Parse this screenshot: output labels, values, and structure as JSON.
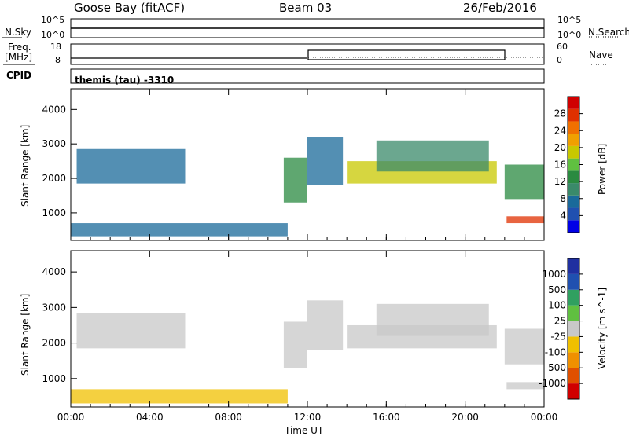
{
  "header": {
    "station": "Goose Bay (fitACF)",
    "beam": "Beam 03",
    "date": "26/Feb/2016"
  },
  "noise_panel": {
    "left_label": "N.Sky",
    "left_ticks": [
      "10^5",
      "10^0"
    ],
    "right_label": "N.Search",
    "right_ticks": [
      "10^5",
      "10^0"
    ]
  },
  "freq_panel": {
    "left_label_1": "Freq.",
    "left_label_2": "[MHz]",
    "left_ticks": [
      "18",
      "8"
    ],
    "right_label": "Nave",
    "right_ticks": [
      "60",
      "0"
    ]
  },
  "cpid": {
    "label": "CPID",
    "value": "themis (tau) -3310"
  },
  "colors": {
    "power": [
      "#0000e6",
      "#2050b0",
      "#1a6a9a",
      "#3a8a6a",
      "#2a8a40",
      "#60c040",
      "#c8c800",
      "#f0a000",
      "#f07000",
      "#e03000",
      "#d00000"
    ],
    "velocity": [
      "#d00000",
      "#e05000",
      "#f09000",
      "#f0c000",
      "#c8c8c8",
      "#60c040",
      "#30a060",
      "#2050b0",
      "#2030a0"
    ]
  },
  "chart_data": [
    {
      "type": "heatmap",
      "name": "Power",
      "ylabel": "Slant Range [km]",
      "xlabel": "Time UT",
      "xticks": [
        "00:00",
        "04:00",
        "08:00",
        "12:00",
        "16:00",
        "20:00",
        "00:00"
      ],
      "yticks": [
        1000,
        2000,
        3000,
        4000
      ],
      "ylim": [
        200,
        4600
      ],
      "colorbar": {
        "label": "Power [dB]",
        "ticks": [
          "4",
          "8",
          "12",
          "16",
          "20",
          "24",
          "28"
        ],
        "range": [
          0,
          32
        ]
      },
      "regions": [
        {
          "t": [
            0.3,
            5.8
          ],
          "r": [
            1850,
            2850
          ],
          "value": 8
        },
        {
          "t": [
            10.8,
            12.0
          ],
          "r": [
            1300,
            2600
          ],
          "value": 12
        },
        {
          "t": [
            12.0,
            13.8
          ],
          "r": [
            1800,
            3200
          ],
          "value": 8
        },
        {
          "t": [
            14.0,
            21.6
          ],
          "r": [
            1850,
            2500
          ],
          "value": 18
        },
        {
          "t": [
            15.5,
            21.2
          ],
          "r": [
            2200,
            3100
          ],
          "value": 10
        },
        {
          "t": [
            22.0,
            24.0
          ],
          "r": [
            1400,
            2400
          ],
          "value": 14
        },
        {
          "t": [
            22.1,
            24.0
          ],
          "r": [
            700,
            900
          ],
          "value": 28
        },
        {
          "t": [
            0.0,
            11.0
          ],
          "r": [
            300,
            700
          ],
          "value": 8
        }
      ]
    },
    {
      "type": "heatmap",
      "name": "Velocity",
      "ylabel": "Slant Range [km]",
      "xlabel": "Time UT",
      "xticks": [
        "00:00",
        "04:00",
        "08:00",
        "12:00",
        "16:00",
        "20:00",
        "00:00"
      ],
      "yticks": [
        1000,
        2000,
        3000,
        4000
      ],
      "ylim": [
        200,
        4600
      ],
      "colorbar": {
        "label": "Velocity [m s^-1]",
        "ticks": [
          "1000",
          "500",
          "100",
          "25",
          "-25",
          "-100",
          "-500",
          "-1000"
        ],
        "range": [
          -1500,
          1500
        ]
      },
      "regions": [
        {
          "t": [
            0.3,
            5.8
          ],
          "r": [
            1850,
            2850
          ],
          "value": 0
        },
        {
          "t": [
            10.8,
            12.0
          ],
          "r": [
            1300,
            2600
          ],
          "value": 80
        },
        {
          "t": [
            12.0,
            13.8
          ],
          "r": [
            1800,
            3200
          ],
          "value": 0
        },
        {
          "t": [
            14.0,
            21.6
          ],
          "r": [
            1850,
            2500
          ],
          "value": 0
        },
        {
          "t": [
            15.5,
            21.2
          ],
          "r": [
            2200,
            3100
          ],
          "value": 0
        },
        {
          "t": [
            22.0,
            24.0
          ],
          "r": [
            1400,
            2400
          ],
          "value": 0
        },
        {
          "t": [
            22.1,
            24.0
          ],
          "r": [
            700,
            900
          ],
          "value": 0
        },
        {
          "t": [
            0.0,
            11.0
          ],
          "r": [
            300,
            700
          ],
          "value": -200
        }
      ]
    }
  ]
}
